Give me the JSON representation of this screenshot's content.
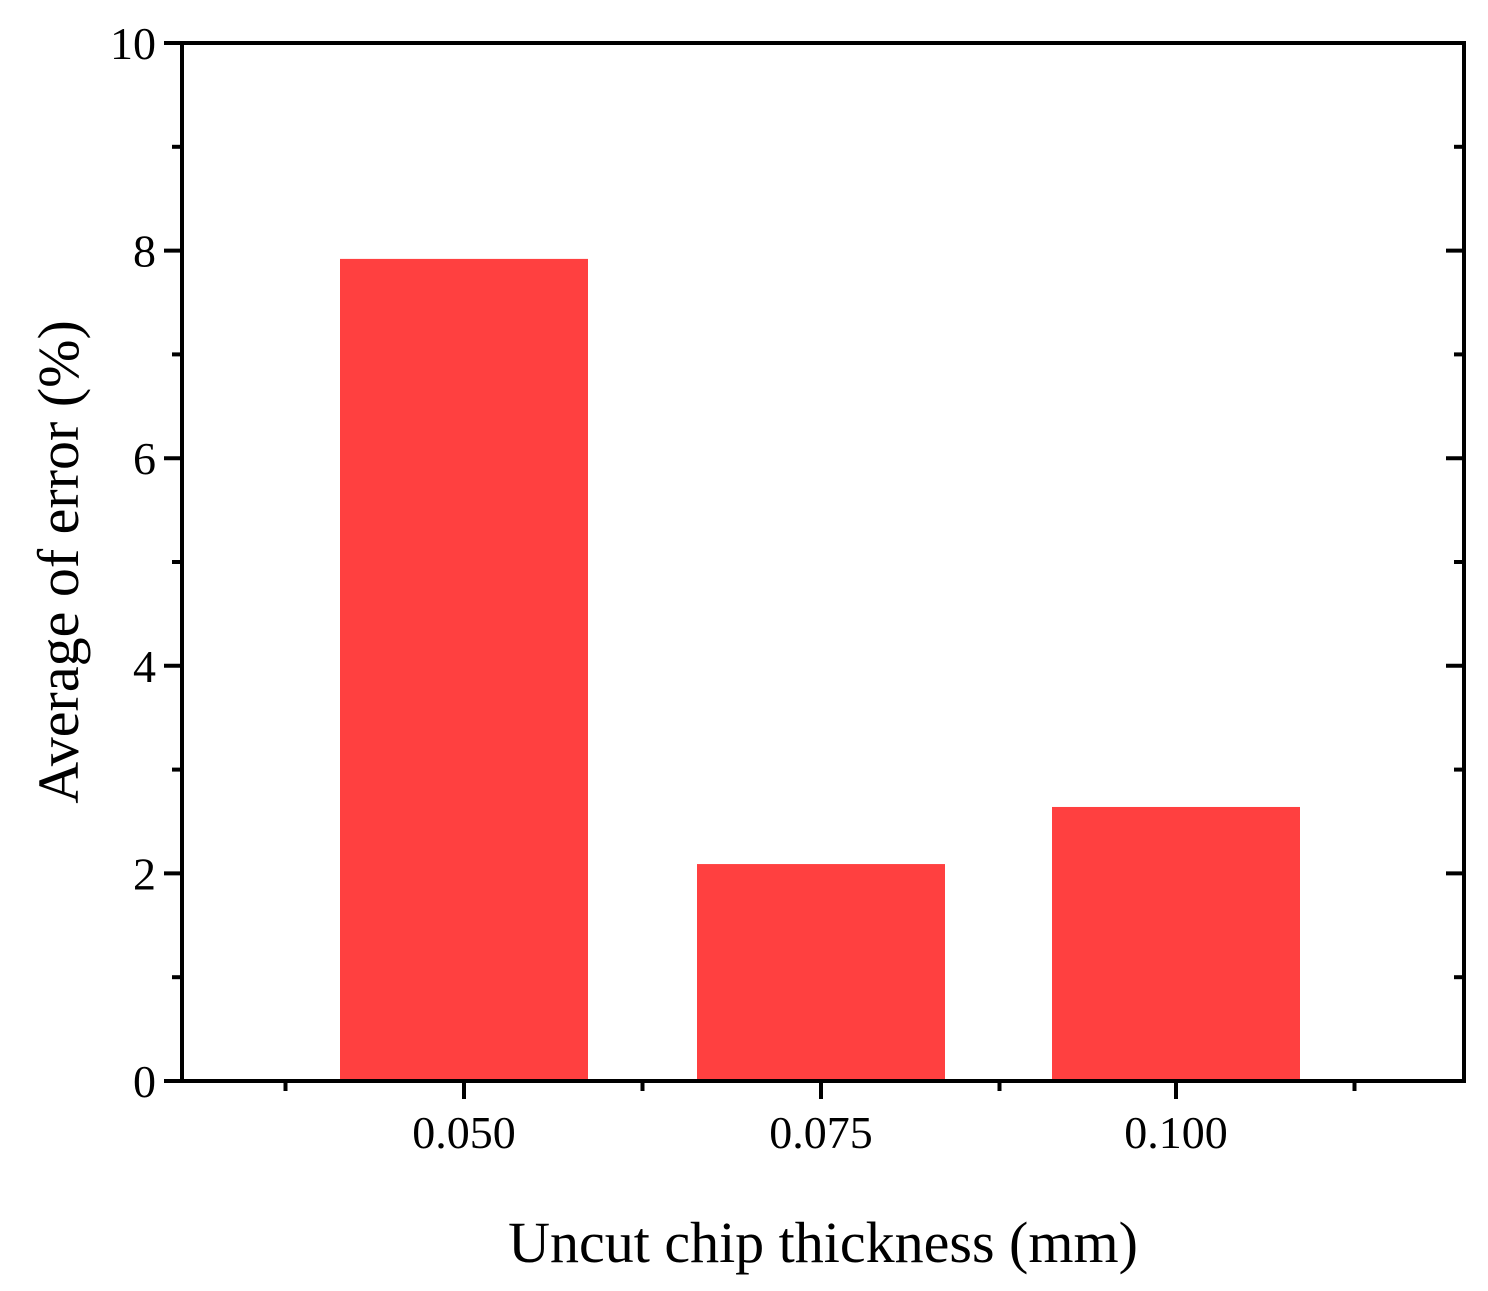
{
  "chart_data": {
    "type": "bar",
    "categories": [
      "0.050",
      "0.075",
      "0.100"
    ],
    "values": [
      7.92,
      2.09,
      2.64
    ],
    "xlabel": "Uncut chip thickness (mm)",
    "ylabel": "Average of error (%)",
    "ylim": [
      0,
      10
    ],
    "yticks": [
      "0",
      "2",
      "4",
      "6",
      "8",
      "10"
    ],
    "bar_color": "#ff4040",
    "grid": false
  }
}
